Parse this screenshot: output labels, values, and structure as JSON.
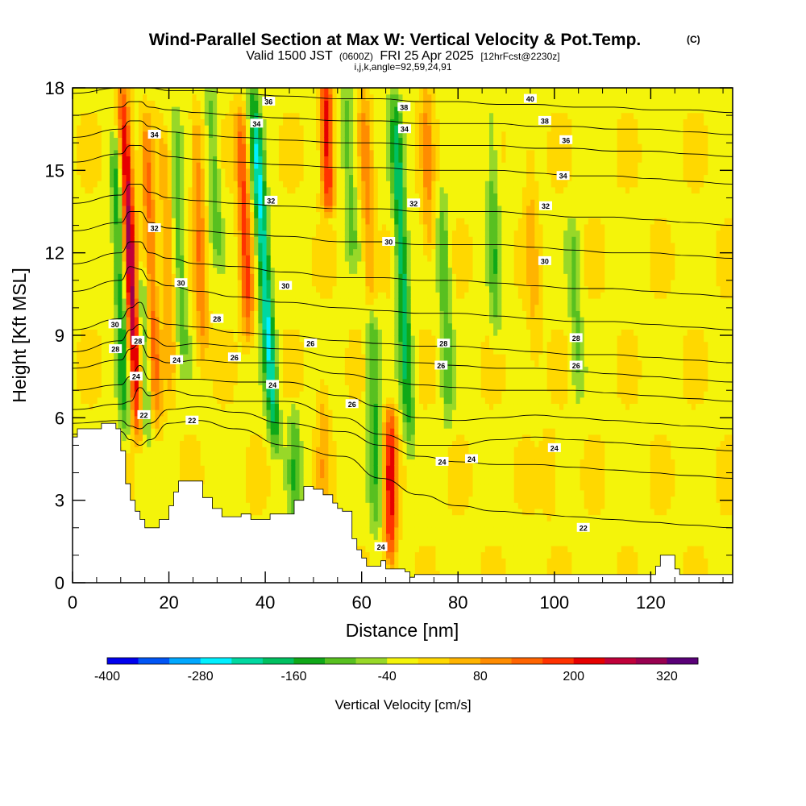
{
  "chart_data": {
    "type": "heatmap",
    "title": "Wind-Parallel Section at Max W: Vertical Velocity & Pot.Temp.",
    "title_mark": "(C)",
    "subtitle_valid": "Valid 1500 JST",
    "subtitle_utc": "(0600Z)",
    "subtitle_date": "FRI 25 Apr 2025",
    "subtitle_fcst": "[12hrFcst@2230z]",
    "subtitle_indices": "i,j,k,angle=92,59,24,91",
    "xlabel": "Distance [nm]",
    "ylabel": "Height [Kft MSL]",
    "xlim": [
      0,
      137
    ],
    "ylim": [
      0,
      18
    ],
    "x_ticks": [
      "0",
      "20",
      "40",
      "60",
      "80",
      "100",
      "120"
    ],
    "x_tick_values": [
      0,
      20,
      40,
      60,
      80,
      100,
      120
    ],
    "y_ticks": [
      "0",
      "3",
      "6",
      "9",
      "12",
      "15",
      "18"
    ],
    "y_tick_values": [
      0,
      3,
      6,
      9,
      12,
      15,
      18
    ],
    "colorbar": {
      "label": "Vertical Velocity [cm/s]",
      "tick_labels": [
        "-400",
        "-280",
        "-160",
        "-40",
        "80",
        "200",
        "320"
      ],
      "tick_values": [
        -400,
        -280,
        -160,
        -40,
        80,
        200,
        320
      ],
      "range": [
        -400,
        360
      ],
      "step": 40,
      "colors": [
        "#0000ee",
        "#0055f5",
        "#00a8ff",
        "#00f0ff",
        "#00d8a0",
        "#00c060",
        "#10a818",
        "#58c020",
        "#98d828",
        "#f4f40a",
        "#ffd800",
        "#ffb400",
        "#ff8c00",
        "#ff6400",
        "#ff3200",
        "#e60000",
        "#c0003a",
        "#980050",
        "#5a0078"
      ]
    },
    "background_w": -10,
    "updrafts": [
      {
        "x": 13.5,
        "z0": 5.5,
        "z1": 18,
        "slope": -0.25,
        "w": 300
      },
      {
        "x": 17.5,
        "z0": 5.5,
        "z1": 17,
        "slope": -0.2,
        "w": 140
      },
      {
        "x": 20.5,
        "z0": 7,
        "z1": 16,
        "slope": -0.15,
        "w": 90
      },
      {
        "x": 27,
        "z0": 8,
        "z1": 17,
        "slope": -0.15,
        "w": 120
      },
      {
        "x": 36.5,
        "z0": 9,
        "z1": 17,
        "slope": -0.2,
        "w": 180
      },
      {
        "x": 53,
        "z0": 14,
        "z1": 18,
        "slope": -0.1,
        "w": 240
      },
      {
        "x": 52,
        "z0": 3,
        "z1": 7,
        "slope": 0,
        "w": 70
      },
      {
        "x": 66,
        "z0": 1,
        "z1": 6,
        "slope": 0,
        "w": 220
      },
      {
        "x": 62,
        "z0": 10,
        "z1": 18,
        "slope": -0.2,
        "w": 100
      },
      {
        "x": 74,
        "z0": 12,
        "z1": 18,
        "slope": -0.1,
        "w": 90
      },
      {
        "x": 96,
        "z0": 8,
        "z1": 16,
        "slope": -0.15,
        "w": 60
      },
      {
        "x": 99,
        "z0": 3,
        "z1": 5,
        "slope": 0,
        "w": 60
      }
    ],
    "downdrafts": [
      {
        "x": 11,
        "z0": 5.5,
        "z1": 16,
        "slope": -0.2,
        "w": -150
      },
      {
        "x": 15.5,
        "z0": 5.5,
        "z1": 11,
        "slope": -0.2,
        "w": -110
      },
      {
        "x": 23,
        "z0": 8,
        "z1": 17,
        "slope": -0.2,
        "w": -100
      },
      {
        "x": 30,
        "z0": 12,
        "z1": 18,
        "slope": -0.2,
        "w": -90
      },
      {
        "x": 42,
        "z0": 5,
        "z1": 18,
        "slope": -0.35,
        "w": -240
      },
      {
        "x": 46,
        "z0": 2.5,
        "z1": 6,
        "slope": 0,
        "w": -90
      },
      {
        "x": 58,
        "z0": 12,
        "z1": 18,
        "slope": -0.2,
        "w": -90
      },
      {
        "x": 63,
        "z0": 2,
        "z1": 10,
        "slope": -0.1,
        "w": -120
      },
      {
        "x": 70,
        "z0": 5,
        "z1": 18,
        "slope": -0.25,
        "w": -180
      },
      {
        "x": 78,
        "z0": 6,
        "z1": 14,
        "slope": -0.15,
        "w": -100
      },
      {
        "x": 88,
        "z0": 9,
        "z1": 17,
        "slope": -0.15,
        "w": -90
      },
      {
        "x": 105,
        "z0": 7,
        "z1": 13,
        "slope": -0.2,
        "w": -80
      }
    ],
    "terrain": [
      [
        0,
        5.3
      ],
      [
        1,
        5.6
      ],
      [
        6,
        5.8
      ],
      [
        9,
        5.6
      ],
      [
        10,
        4.8
      ],
      [
        11,
        3.6
      ],
      [
        12,
        3.0
      ],
      [
        13,
        2.6
      ],
      [
        14,
        2.3
      ],
      [
        15,
        2.0
      ],
      [
        17,
        2.0
      ],
      [
        18,
        2.3
      ],
      [
        20,
        2.8
      ],
      [
        21,
        3.3
      ],
      [
        22,
        3.7
      ],
      [
        25,
        3.7
      ],
      [
        27,
        3.1
      ],
      [
        29,
        2.7
      ],
      [
        31,
        2.4
      ],
      [
        33,
        2.4
      ],
      [
        35,
        2.5
      ],
      [
        37,
        2.3
      ],
      [
        39,
        2.3
      ],
      [
        41,
        2.5
      ],
      [
        44,
        2.5
      ],
      [
        46,
        3.0
      ],
      [
        48,
        3.5
      ],
      [
        50,
        3.4
      ],
      [
        52,
        3.2
      ],
      [
        54,
        2.9
      ],
      [
        55,
        2.7
      ],
      [
        56,
        2.6
      ],
      [
        58,
        1.6
      ],
      [
        59,
        1.2
      ],
      [
        60,
        0.9
      ],
      [
        61,
        0.6
      ],
      [
        63,
        0.6
      ],
      [
        64,
        0.8
      ],
      [
        65,
        0.5
      ],
      [
        68,
        0.5
      ],
      [
        69,
        0.4
      ],
      [
        70,
        0.2
      ],
      [
        71,
        0.3
      ],
      [
        72,
        0.3
      ],
      [
        120,
        0.3
      ],
      [
        121,
        0.6
      ],
      [
        122,
        1.0
      ],
      [
        124,
        1.0
      ],
      [
        125,
        0.5
      ],
      [
        126,
        0.3
      ],
      [
        137,
        0.3
      ]
    ],
    "isentropes": [
      {
        "label": "22",
        "x": [
          0,
          10,
          12,
          14,
          16,
          20,
          26,
          34,
          44,
          56,
          64,
          72,
          80,
          88,
          96,
          104,
          112,
          120,
          128,
          137
        ],
        "y": [
          5.4,
          5.5,
          5.2,
          5.0,
          5.2,
          5.8,
          5.9,
          5.6,
          5.0,
          4.6,
          3.8,
          3.2,
          2.8,
          2.6,
          2.5,
          2.4,
          2.3,
          2.2,
          2.1,
          2.0
        ]
      },
      {
        "label": "",
        "x": [
          0,
          10,
          12,
          14,
          16,
          20,
          26,
          34,
          44,
          56,
          64,
          72,
          80,
          88,
          96,
          104,
          112,
          120,
          128,
          137
        ],
        "y": [
          5.8,
          5.9,
          5.7,
          5.6,
          5.8,
          6.3,
          6.4,
          6.2,
          5.8,
          5.5,
          5.0,
          4.6,
          4.4,
          4.3,
          4.3,
          4.2,
          4.1,
          4.0,
          3.9,
          3.8
        ]
      },
      {
        "label": "24",
        "x": [
          0,
          10,
          12,
          14,
          16,
          20,
          26,
          34,
          44,
          56,
          64,
          72,
          80,
          88,
          96,
          104,
          112,
          120,
          128,
          137
        ],
        "y": [
          6.3,
          6.5,
          6.6,
          7.1,
          6.8,
          7.0,
          6.8,
          6.6,
          6.6,
          6.0,
          5.4,
          5.0,
          5.0,
          5.2,
          5.3,
          5.2,
          5.1,
          5.0,
          4.9,
          4.8
        ]
      },
      {
        "label": "",
        "x": [
          0,
          10,
          12,
          14,
          16,
          20,
          26,
          34,
          44,
          56,
          64,
          72,
          80,
          88,
          96,
          104,
          112,
          120,
          128,
          137
        ],
        "y": [
          7.0,
          7.2,
          7.5,
          7.9,
          7.4,
          7.4,
          7.4,
          7.3,
          7.3,
          6.8,
          6.4,
          6.0,
          5.9,
          6.0,
          6.1,
          6.0,
          5.9,
          5.8,
          5.7,
          5.6
        ]
      },
      {
        "label": "26",
        "x": [
          0,
          10,
          12,
          14,
          16,
          20,
          26,
          34,
          44,
          56,
          64,
          72,
          80,
          88,
          96,
          104,
          112,
          120,
          128,
          137
        ],
        "y": [
          7.8,
          8.1,
          8.5,
          8.7,
          8.2,
          8.0,
          8.1,
          8.0,
          8.0,
          7.6,
          7.4,
          7.2,
          7.1,
          7.0,
          7.0,
          7.0,
          6.9,
          6.8,
          6.7,
          6.6
        ]
      },
      {
        "label": "",
        "x": [
          0,
          10,
          12,
          14,
          16,
          20,
          26,
          34,
          44,
          56,
          64,
          72,
          80,
          88,
          96,
          104,
          112,
          120,
          128,
          137
        ],
        "y": [
          8.4,
          8.8,
          9.2,
          9.4,
          8.9,
          8.6,
          8.7,
          8.6,
          8.5,
          8.2,
          8.1,
          8.0,
          7.9,
          7.8,
          7.8,
          7.7,
          7.6,
          7.5,
          7.4,
          7.3
        ]
      },
      {
        "label": "28",
        "x": [
          0,
          10,
          12,
          14,
          16,
          20,
          26,
          34,
          44,
          56,
          64,
          72,
          80,
          88,
          96,
          104,
          112,
          120,
          128,
          137
        ],
        "y": [
          9.2,
          9.6,
          10.0,
          10.2,
          9.6,
          9.4,
          9.3,
          9.1,
          9.0,
          8.8,
          8.7,
          8.6,
          8.6,
          8.5,
          8.4,
          8.3,
          8.3,
          8.2,
          8.1,
          8.0
        ]
      },
      {
        "label": "30",
        "x": [
          0,
          10,
          12,
          14,
          16,
          20,
          26,
          34,
          44,
          56,
          64,
          72,
          80,
          88,
          96,
          104,
          112,
          120,
          128,
          137
        ],
        "y": [
          10.6,
          11.0,
          11.5,
          11.4,
          11.0,
          10.8,
          10.6,
          10.4,
          10.2,
          10.0,
          9.9,
          9.8,
          9.8,
          9.7,
          9.6,
          9.5,
          9.5,
          9.4,
          9.3,
          9.2
        ]
      },
      {
        "label": "",
        "x": [
          0,
          10,
          12,
          14,
          16,
          20,
          26,
          34,
          44,
          56,
          64,
          72,
          80,
          88,
          96,
          104,
          112,
          120,
          128,
          137
        ],
        "y": [
          11.6,
          12.0,
          12.4,
          12.4,
          12.0,
          11.8,
          11.6,
          11.5,
          11.3,
          11.1,
          11.1,
          11.0,
          11.0,
          10.9,
          10.8,
          10.7,
          10.7,
          10.6,
          10.5,
          10.4
        ]
      },
      {
        "label": "32",
        "x": [
          0,
          10,
          12,
          14,
          16,
          20,
          26,
          34,
          44,
          56,
          64,
          72,
          80,
          88,
          96,
          104,
          112,
          120,
          128,
          137
        ],
        "y": [
          12.8,
          13.1,
          13.5,
          13.5,
          13.1,
          12.9,
          12.8,
          12.7,
          12.6,
          12.4,
          12.4,
          12.3,
          12.3,
          12.3,
          12.2,
          12.1,
          12.0,
          12.0,
          11.9,
          11.8
        ]
      },
      {
        "label": "",
        "x": [
          0,
          10,
          12,
          14,
          16,
          20,
          26,
          34,
          44,
          56,
          64,
          72,
          80,
          88,
          96,
          104,
          112,
          120,
          128,
          137
        ],
        "y": [
          13.8,
          14.1,
          14.5,
          14.5,
          14.2,
          14.0,
          13.9,
          13.8,
          13.7,
          13.6,
          13.6,
          13.5,
          13.5,
          13.5,
          13.4,
          13.3,
          13.3,
          13.2,
          13.1,
          13.0
        ]
      },
      {
        "label": "34",
        "x": [
          0,
          10,
          12,
          14,
          16,
          20,
          26,
          34,
          44,
          56,
          64,
          72,
          80,
          88,
          96,
          104,
          112,
          120,
          128,
          137
        ],
        "y": [
          15.3,
          15.6,
          15.9,
          15.9,
          15.7,
          15.5,
          15.4,
          15.3,
          15.2,
          15.1,
          15.1,
          15.0,
          15.0,
          15.0,
          14.9,
          14.8,
          14.8,
          14.7,
          14.6,
          14.5
        ]
      },
      {
        "label": "",
        "x": [
          0,
          10,
          12,
          14,
          16,
          20,
          26,
          34,
          44,
          56,
          64,
          72,
          80,
          88,
          96,
          104,
          112,
          120,
          128,
          137
        ],
        "y": [
          16.2,
          16.5,
          16.8,
          16.8,
          16.6,
          16.4,
          16.3,
          16.2,
          16.1,
          16.0,
          16.0,
          15.9,
          15.9,
          15.9,
          15.8,
          15.8,
          15.7,
          15.7,
          15.6,
          15.5
        ]
      },
      {
        "label": "36",
        "x": [
          0,
          10,
          12,
          14,
          16,
          20,
          26,
          34,
          44,
          56,
          64,
          72,
          80,
          88,
          96,
          104,
          112,
          120,
          128,
          137
        ],
        "y": [
          17.0,
          17.3,
          17.5,
          17.5,
          17.3,
          17.2,
          17.1,
          17.0,
          16.9,
          16.8,
          16.8,
          16.7,
          16.7,
          16.7,
          16.6,
          16.6,
          16.5,
          16.5,
          16.4,
          16.3
        ]
      },
      {
        "label": "38",
        "x": [
          0,
          10,
          12,
          14,
          16,
          20,
          26,
          34,
          44,
          56,
          64,
          72,
          80,
          88,
          96,
          104,
          112,
          120,
          128,
          137
        ],
        "y": [
          17.8,
          18.0,
          18.0,
          18.0,
          18.0,
          17.9,
          17.9,
          17.8,
          17.7,
          17.6,
          17.6,
          17.5,
          17.5,
          17.4,
          17.4,
          17.3,
          17.3,
          17.2,
          17.2,
          17.1
        ]
      }
    ],
    "contour_labels": [
      {
        "text": "34",
        "x": 17.0,
        "y": 16.3
      },
      {
        "text": "32",
        "x": 17.0,
        "y": 12.9
      },
      {
        "text": "30",
        "x": 22.5,
        "y": 10.9
      },
      {
        "text": "30",
        "x": 8.8,
        "y": 9.4
      },
      {
        "text": "28",
        "x": 8.9,
        "y": 8.5
      },
      {
        "text": "28",
        "x": 13.6,
        "y": 8.8
      },
      {
        "text": "24",
        "x": 13.2,
        "y": 7.5
      },
      {
        "text": "22",
        "x": 14.8,
        "y": 6.1
      },
      {
        "text": "24",
        "x": 21.6,
        "y": 8.1
      },
      {
        "text": "22",
        "x": 24.8,
        "y": 5.9
      },
      {
        "text": "28",
        "x": 30.0,
        "y": 9.6
      },
      {
        "text": "26",
        "x": 33.6,
        "y": 8.2
      },
      {
        "text": "36",
        "x": 40.7,
        "y": 17.5
      },
      {
        "text": "34",
        "x": 38.2,
        "y": 16.7
      },
      {
        "text": "32",
        "x": 41.2,
        "y": 13.9
      },
      {
        "text": "30",
        "x": 44.2,
        "y": 10.8
      },
      {
        "text": "26",
        "x": 49.4,
        "y": 8.7
      },
      {
        "text": "24",
        "x": 41.5,
        "y": 7.2
      },
      {
        "text": "26",
        "x": 58.0,
        "y": 6.5
      },
      {
        "text": "38",
        "x": 68.8,
        "y": 17.3
      },
      {
        "text": "34",
        "x": 68.9,
        "y": 16.5
      },
      {
        "text": "32",
        "x": 70.8,
        "y": 13.8
      },
      {
        "text": "30",
        "x": 65.6,
        "y": 12.4
      },
      {
        "text": "28",
        "x": 77.0,
        "y": 8.7
      },
      {
        "text": "26",
        "x": 76.5,
        "y": 7.9
      },
      {
        "text": "24",
        "x": 76.7,
        "y": 4.4
      },
      {
        "text": "24",
        "x": 82.8,
        "y": 4.5
      },
      {
        "text": "24",
        "x": 64.0,
        "y": 1.3
      },
      {
        "text": "40",
        "x": 95.0,
        "y": 17.6
      },
      {
        "text": "38",
        "x": 98.0,
        "y": 16.8
      },
      {
        "text": "36",
        "x": 102.4,
        "y": 16.1
      },
      {
        "text": "34",
        "x": 101.8,
        "y": 14.8
      },
      {
        "text": "32",
        "x": 98.2,
        "y": 13.7
      },
      {
        "text": "30",
        "x": 98.0,
        "y": 11.7
      },
      {
        "text": "28",
        "x": 104.5,
        "y": 8.9
      },
      {
        "text": "26",
        "x": 104.5,
        "y": 7.9
      },
      {
        "text": "24",
        "x": 100.0,
        "y": 4.9
      },
      {
        "text": "22",
        "x": 106.0,
        "y": 2.0
      }
    ]
  }
}
